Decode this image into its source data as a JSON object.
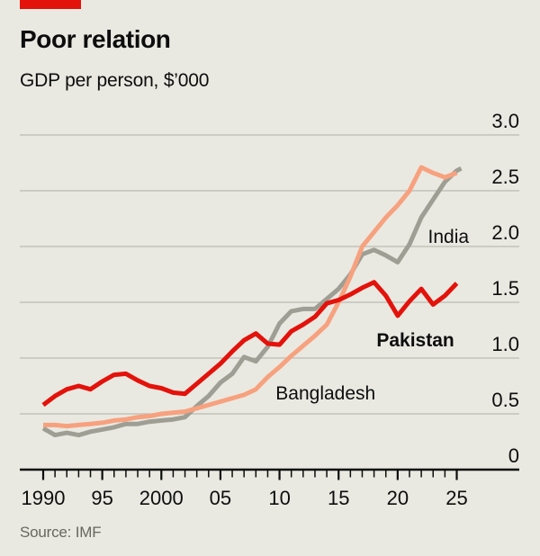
{
  "header": {
    "title": "Poor relation",
    "subtitle": "GDP per person, $’000",
    "tag_color": "#e3120b"
  },
  "footer": {
    "source": "Source: IMF"
  },
  "colors": {
    "background": "#e9e9e1",
    "text": "#0d0d0d",
    "gridline": "#bcbcb2",
    "axis": "#0d0d0d",
    "source_text": "#676760"
  },
  "chart_data": {
    "type": "line",
    "title": "Poor relation",
    "subtitle": "GDP per person, $'000",
    "unit": "thousand US dollars",
    "grid": "horizontal",
    "legend": "inline-labels",
    "xlim": [
      1990,
      2025
    ],
    "ylim": [
      0,
      3.0
    ],
    "x": [
      1990,
      1991,
      1992,
      1993,
      1994,
      1995,
      1996,
      1997,
      1998,
      1999,
      2000,
      2001,
      2002,
      2003,
      2004,
      2005,
      2006,
      2007,
      2008,
      2009,
      2010,
      2011,
      2012,
      2013,
      2014,
      2015,
      2016,
      2017,
      2018,
      2019,
      2020,
      2021,
      2022,
      2023,
      2024,
      2025
    ],
    "x_ticks_major": [
      {
        "value": 1990,
        "label": "1990"
      },
      {
        "value": 1995,
        "label": "95"
      },
      {
        "value": 2000,
        "label": "2000"
      },
      {
        "value": 2005,
        "label": "05"
      },
      {
        "value": 2010,
        "label": "10"
      },
      {
        "value": 2015,
        "label": "15"
      },
      {
        "value": 2020,
        "label": "20"
      },
      {
        "value": 2025,
        "label": "25"
      }
    ],
    "y_ticks": [
      {
        "value": 0,
        "label": "0"
      },
      {
        "value": 0.5,
        "label": "0.5"
      },
      {
        "value": 1.0,
        "label": "1.0"
      },
      {
        "value": 1.5,
        "label": "1.5"
      },
      {
        "value": 2.0,
        "label": "2.0"
      },
      {
        "value": 2.5,
        "label": "2.5"
      },
      {
        "value": 3.0,
        "label": "3.0"
      }
    ],
    "series": [
      {
        "name": "India",
        "color": "#9e9e94",
        "emphasis": false,
        "label_at": {
          "year": 2024.3,
          "value": 2.09
        },
        "values": [
          0.37,
          0.31,
          0.33,
          0.31,
          0.34,
          0.36,
          0.38,
          0.41,
          0.41,
          0.43,
          0.44,
          0.45,
          0.47,
          0.57,
          0.66,
          0.78,
          0.86,
          1.01,
          0.97,
          1.1,
          1.31,
          1.42,
          1.44,
          1.44,
          1.53,
          1.62,
          1.75,
          1.93,
          1.97,
          1.92,
          1.86,
          2.02,
          2.26,
          2.42,
          2.58,
          2.68
        ]
      },
      {
        "name": "Bangladesh",
        "color": "#f7a17e",
        "emphasis": false,
        "label_at": {
          "year": 2013.9,
          "value": 0.685
        },
        "values": [
          0.4,
          0.4,
          0.39,
          0.4,
          0.41,
          0.42,
          0.44,
          0.45,
          0.47,
          0.48,
          0.5,
          0.51,
          0.52,
          0.55,
          0.58,
          0.61,
          0.64,
          0.67,
          0.72,
          0.83,
          0.92,
          1.02,
          1.11,
          1.2,
          1.3,
          1.5,
          1.73,
          2.0,
          2.13,
          2.26,
          2.37,
          2.5,
          2.71,
          2.66,
          2.62,
          2.66
        ]
      },
      {
        "name": "Pakistan",
        "color": "#e3120b",
        "emphasis": true,
        "label_at": {
          "year": 2021.5,
          "value": 1.161
        },
        "values": [
          0.58,
          0.66,
          0.72,
          0.75,
          0.72,
          0.79,
          0.85,
          0.86,
          0.8,
          0.75,
          0.73,
          0.69,
          0.68,
          0.77,
          0.86,
          0.95,
          1.06,
          1.16,
          1.22,
          1.13,
          1.12,
          1.24,
          1.3,
          1.37,
          1.49,
          1.52,
          1.57,
          1.63,
          1.68,
          1.56,
          1.38,
          1.51,
          1.62,
          1.48,
          1.56,
          1.67
        ]
      }
    ]
  }
}
